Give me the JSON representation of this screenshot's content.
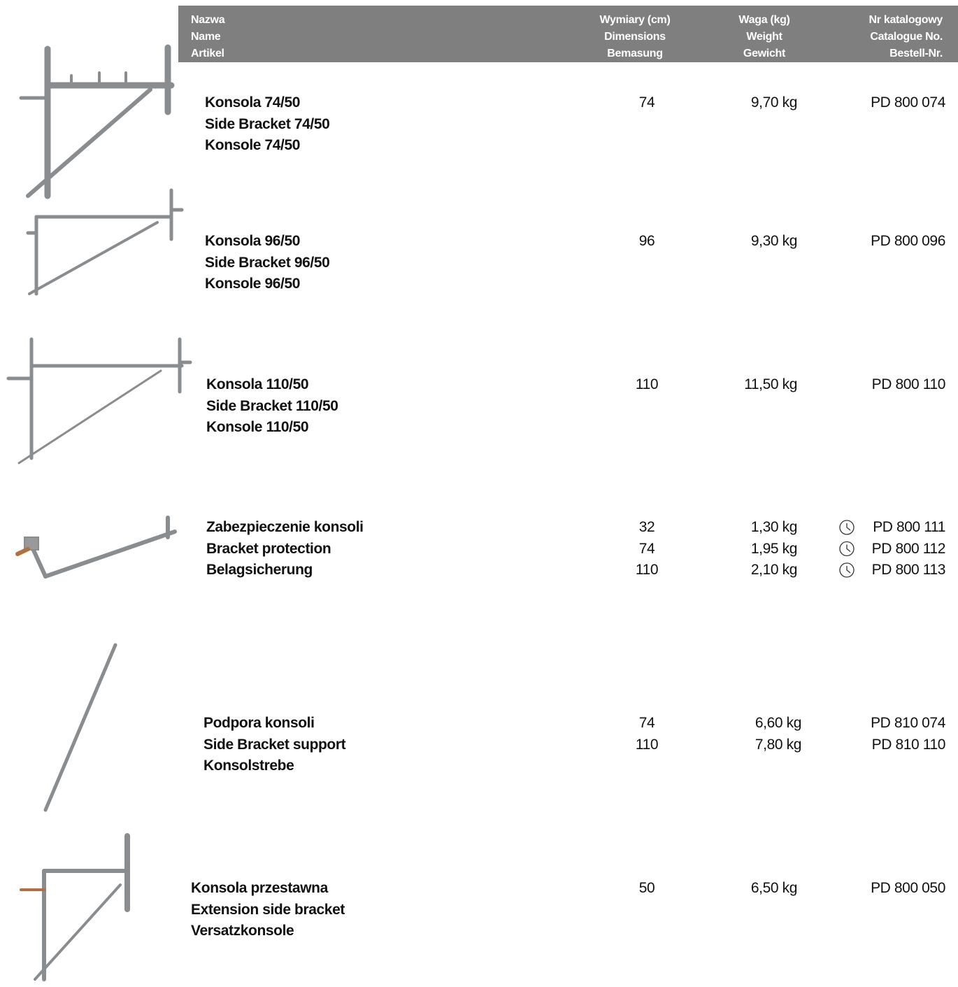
{
  "header": {
    "name": [
      "Nazwa",
      "Name",
      "Artikel"
    ],
    "dimensions": [
      "Wymiary (cm)",
      "Dimensions",
      "Bemasung"
    ],
    "weight": [
      "Waga (kg)",
      "Weight",
      "Gewicht"
    ],
    "catalogue": [
      "Nr katalogowy",
      "Catalogue No.",
      "Bestell-Nr."
    ]
  },
  "items": [
    {
      "name": [
        "Konsola 74/50",
        "Side Bracket 74/50",
        "Konsole 74/50"
      ],
      "dimensions": [
        74
      ],
      "weights": [
        "9,70 kg"
      ],
      "catalogue": [
        "PD 800 074"
      ]
    },
    {
      "name": [
        "Konsola 96/50",
        "Side Bracket 96/50",
        "Konsole 96/50"
      ],
      "dimensions": [
        96
      ],
      "weights": [
        "9,30 kg"
      ],
      "catalogue": [
        "PD 800 096"
      ]
    },
    {
      "name": [
        "Konsola 110/50",
        "Side Bracket 110/50",
        "Konsole 110/50"
      ],
      "dimensions": [
        110
      ],
      "weights": [
        "11,50 kg"
      ],
      "catalogue": [
        "PD 800 110"
      ]
    },
    {
      "name": [
        "Zabezpieczenie konsoli",
        "Bracket protection",
        "Belagsicherung"
      ],
      "dimensions": [
        32,
        74,
        110
      ],
      "weights": [
        "1,30 kg",
        "1,95 kg",
        "2,10 kg"
      ],
      "catalogue": [
        "PD 800 111",
        "PD 800 112",
        "PD 800 113"
      ]
    },
    {
      "name": [
        "Podpora konsoli",
        "Side Bracket support",
        "Konsolstrebe"
      ],
      "dimensions": [
        74,
        110
      ],
      "weights": [
        "6,60 kg",
        "7,80 kg"
      ],
      "catalogue": [
        "PD 810 074",
        "PD 810 110"
      ]
    },
    {
      "name": [
        "Konsola przestawna",
        "Extension side bracket",
        "Versatzkonsole"
      ],
      "dimensions": [
        50
      ],
      "weights": [
        "6,50 kg"
      ],
      "catalogue": [
        "PD 800 050"
      ]
    }
  ]
}
